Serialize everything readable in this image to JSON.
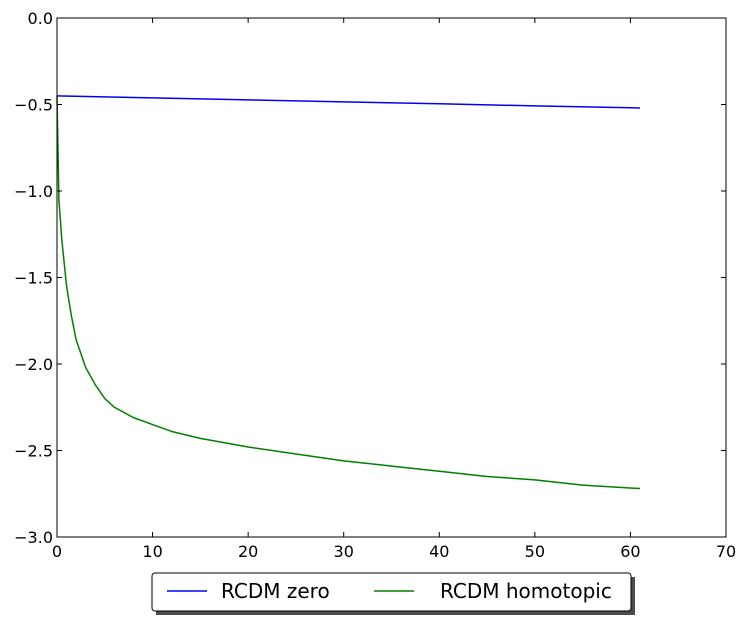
{
  "chart_data": {
    "type": "line",
    "title": "",
    "xlabel": "",
    "ylabel": "",
    "xlim": [
      0,
      70
    ],
    "ylim": [
      -3.0,
      0.0
    ],
    "xticks": [
      0,
      10,
      20,
      30,
      40,
      50,
      60,
      70
    ],
    "xtick_labels": [
      "0",
      "10",
      "20",
      "30",
      "40",
      "50",
      "60",
      "70"
    ],
    "yticks": [
      0.0,
      -0.5,
      -1.0,
      -1.5,
      -2.0,
      -2.5,
      -3.0
    ],
    "ytick_labels": [
      "0.0",
      "−0.5",
      "−1.0",
      "−1.5",
      "−2.0",
      "−2.5",
      "−3.0"
    ],
    "grid": false,
    "legend_position": "bottom-center, below plot",
    "series": [
      {
        "name": "RCDM zero",
        "color": "#0000ff",
        "x": [
          0,
          10,
          20,
          30,
          40,
          50,
          61
        ],
        "y": [
          -0.45,
          -0.462,
          -0.473,
          -0.485,
          -0.496,
          -0.508,
          -0.52
        ]
      },
      {
        "name": "RCDM homotopic",
        "color": "#008000",
        "x": [
          0,
          0.2,
          0.5,
          1,
          1.5,
          2,
          3,
          4,
          5,
          6,
          8,
          10,
          12,
          15,
          20,
          25,
          30,
          35,
          40,
          45,
          50,
          55,
          61
        ],
        "y": [
          -0.45,
          -1.05,
          -1.28,
          -1.55,
          -1.72,
          -1.86,
          -2.02,
          -2.12,
          -2.2,
          -2.25,
          -2.31,
          -2.35,
          -2.39,
          -2.43,
          -2.48,
          -2.52,
          -2.56,
          -2.59,
          -2.62,
          -2.65,
          -2.67,
          -2.7,
          -2.72
        ]
      }
    ]
  }
}
